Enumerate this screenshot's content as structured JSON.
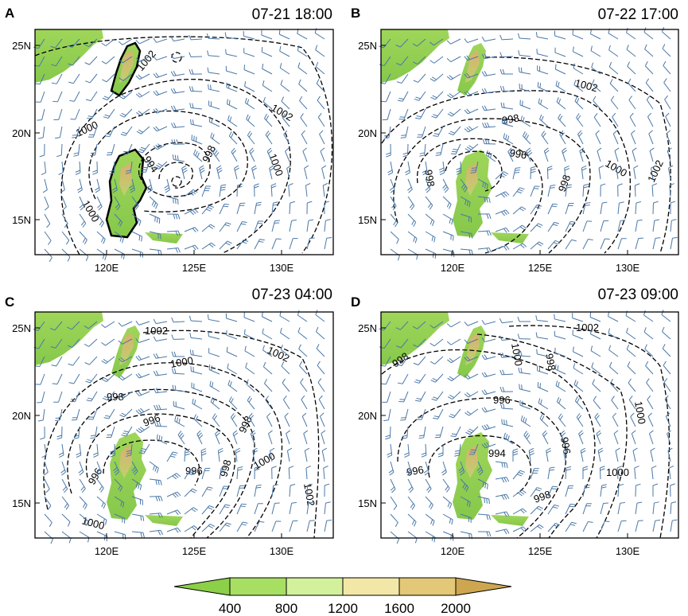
{
  "colors": {
    "land_low": "#8cd04a",
    "land_mid": "#a8dc5c",
    "land_high": "#c8a060",
    "barb": "#4a78a8",
    "contour": "#000000"
  },
  "panels": [
    {
      "letter": "A",
      "time": "07-21 18:00",
      "x_ticks": [
        "120E",
        "125E",
        "130E"
      ],
      "y_ticks": [
        "25N",
        "20N",
        "15N"
      ],
      "contour_labels": [
        "1002",
        "1000",
        "1002",
        "1000",
        "998",
        "994",
        "1000"
      ]
    },
    {
      "letter": "B",
      "time": "07-22 17:00",
      "x_ticks": [
        "120E",
        "125E",
        "130E"
      ],
      "y_ticks": [
        "25N",
        "20N",
        "15N"
      ],
      "contour_labels": [
        "1002",
        "998",
        "996",
        "998",
        "998",
        "1000",
        "1002"
      ]
    },
    {
      "letter": "C",
      "time": "07-23 04:00",
      "x_ticks": [
        "120E",
        "125E",
        "130E"
      ],
      "y_ticks": [
        "25N",
        "20N",
        "15N"
      ],
      "contour_labels": [
        "1002",
        "1002",
        "1000",
        "998",
        "996",
        "998",
        "996",
        "996",
        "998",
        "1000",
        "1002",
        "1000"
      ]
    },
    {
      "letter": "D",
      "time": "07-23 09:00",
      "x_ticks": [
        "120E",
        "125E",
        "130E"
      ],
      "y_ticks": [
        "25N",
        "20N",
        "15N"
      ],
      "contour_labels": [
        "1002",
        "1000",
        "998",
        "998",
        "996",
        "1000",
        "996",
        "994",
        "996",
        "1000",
        "998"
      ]
    }
  ],
  "colorbar": {
    "labels": [
      "400",
      "800",
      "1200",
      "1600",
      "2000"
    ],
    "colors": [
      "#8ccf48",
      "#a7df63",
      "#d3f19c",
      "#f3e7a8",
      "#e2c877",
      "#cda64f"
    ]
  }
}
